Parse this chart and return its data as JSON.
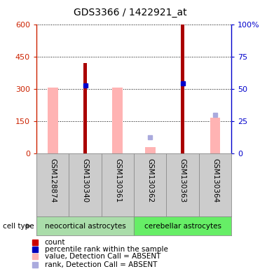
{
  "title": "GDS3366 / 1422921_at",
  "samples": [
    "GSM128874",
    "GSM130340",
    "GSM130361",
    "GSM130362",
    "GSM130363",
    "GSM130364"
  ],
  "ylim_left": [
    0,
    600
  ],
  "ylim_right": [
    0,
    100
  ],
  "yticks_left": [
    0,
    150,
    300,
    450,
    600
  ],
  "ytick_labels_left": [
    "0",
    "150",
    "300",
    "450",
    "600"
  ],
  "yticks_right": [
    0,
    25,
    50,
    75,
    100
  ],
  "ytick_labels_right": [
    "0",
    "25",
    "50",
    "75",
    "100%"
  ],
  "count_values": [
    null,
    420,
    null,
    null,
    600,
    null
  ],
  "count_color": "#aa0000",
  "percentile_values": [
    null,
    315,
    null,
    null,
    325,
    null
  ],
  "percentile_color": "#0000cc",
  "value_absent": [
    305,
    null,
    305,
    28,
    null,
    165
  ],
  "value_absent_color": "#ffb3b3",
  "rank_absent": [
    null,
    null,
    null,
    75,
    null,
    180
  ],
  "rank_absent_color": "#aaaadd",
  "sample_area_color": "#cccccc",
  "left_axis_color": "#cc2200",
  "right_axis_color": "#0000cc",
  "neocortical_color": "#aaddaa",
  "cerebellar_color": "#66ee66",
  "legend_items": [
    {
      "color": "#cc0000",
      "label": "count"
    },
    {
      "color": "#0000bb",
      "label": "percentile rank within the sample"
    },
    {
      "color": "#ffb3b3",
      "label": "value, Detection Call = ABSENT"
    },
    {
      "color": "#aaaadd",
      "label": "rank, Detection Call = ABSENT"
    }
  ]
}
